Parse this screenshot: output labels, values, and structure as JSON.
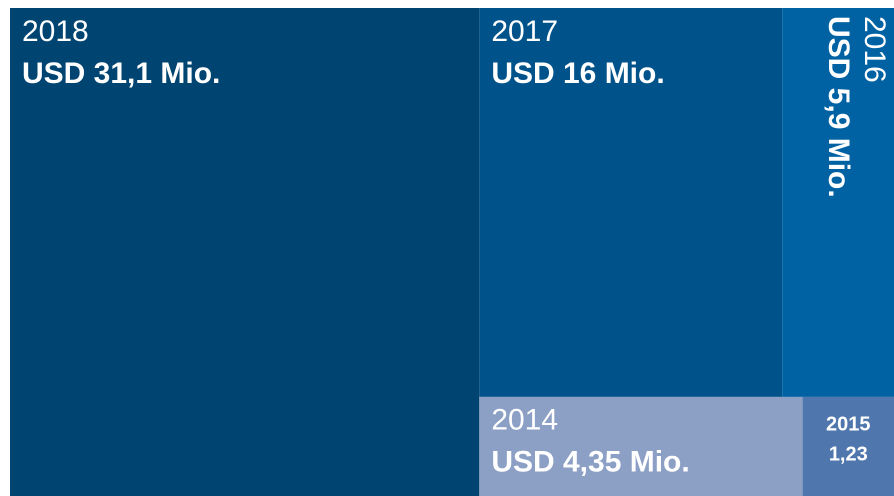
{
  "chart_data": {
    "type": "treemap",
    "categories": [
      "2018",
      "2017",
      "2016",
      "2014",
      "2015"
    ],
    "values": [
      31.1,
      16,
      5.9,
      4.35,
      1.23
    ],
    "value_labels": [
      "USD 31,1 Mio.",
      "USD 16 Mio.",
      "USD 5,9 Mio.",
      "USD 4,35 Mio.",
      "1,23"
    ],
    "colors": [
      "#004571",
      "#00528a",
      "#0062a3",
      "#8c9fc4",
      "#4f77ad"
    ]
  }
}
